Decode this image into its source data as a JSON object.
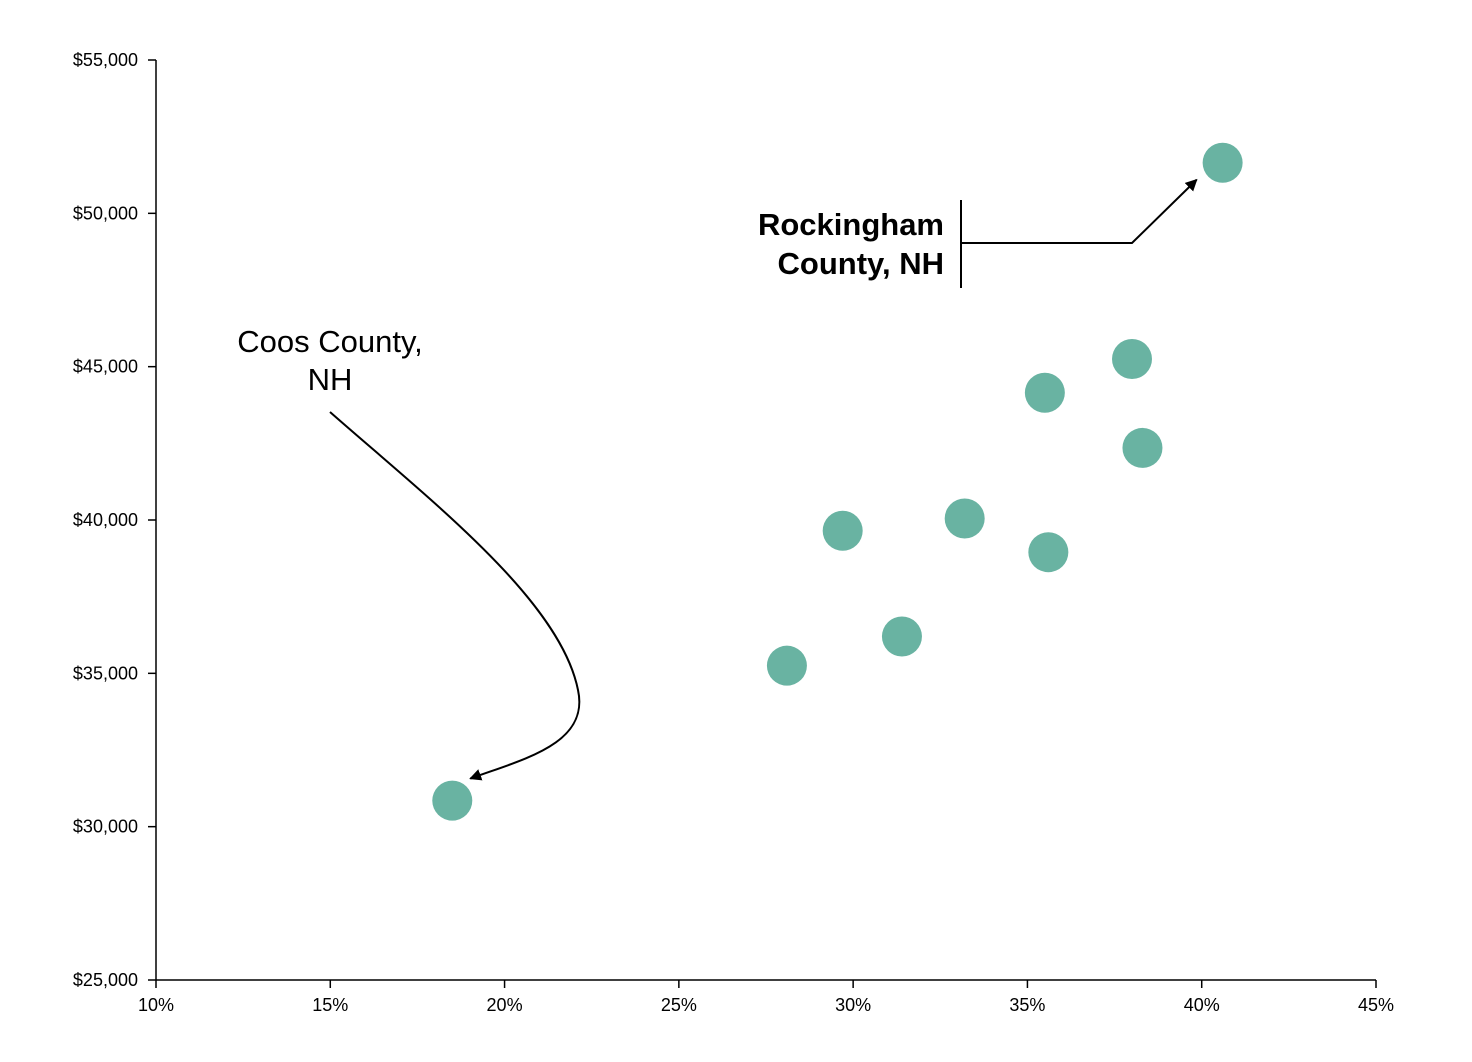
{
  "chart_data": {
    "type": "scatter",
    "title": "",
    "xlabel": "",
    "ylabel": "",
    "xlim": [
      0.1,
      0.45
    ],
    "ylim": [
      25000,
      55000
    ],
    "x_ticks": [
      0.1,
      0.15,
      0.2,
      0.25,
      0.3,
      0.35,
      0.4,
      0.45
    ],
    "x_tick_labels": [
      "10%",
      "15%",
      "20%",
      "25%",
      "30%",
      "35%",
      "40%",
      "45%"
    ],
    "y_ticks": [
      25000,
      30000,
      35000,
      40000,
      45000,
      50000,
      55000
    ],
    "y_tick_labels": [
      "$25,000",
      "$30,000",
      "$35,000",
      "$40,000",
      "$45,000",
      "$50,000",
      "$55,000"
    ],
    "grid": false,
    "marker_color": "#69b3a2",
    "points": [
      {
        "x": 0.185,
        "y": 30850
      },
      {
        "x": 0.281,
        "y": 35250
      },
      {
        "x": 0.297,
        "y": 39650
      },
      {
        "x": 0.314,
        "y": 36200
      },
      {
        "x": 0.332,
        "y": 40050
      },
      {
        "x": 0.355,
        "y": 44150
      },
      {
        "x": 0.356,
        "y": 38950
      },
      {
        "x": 0.38,
        "y": 45250
      },
      {
        "x": 0.383,
        "y": 42350
      },
      {
        "x": 0.406,
        "y": 51650
      }
    ],
    "annotations": [
      {
        "lines": [
          "Coos County,",
          "NH"
        ],
        "bold": false,
        "target_point": 0
      },
      {
        "lines": [
          "Rockingham",
          "County, NH"
        ],
        "bold": true,
        "target_point": 9
      }
    ]
  }
}
